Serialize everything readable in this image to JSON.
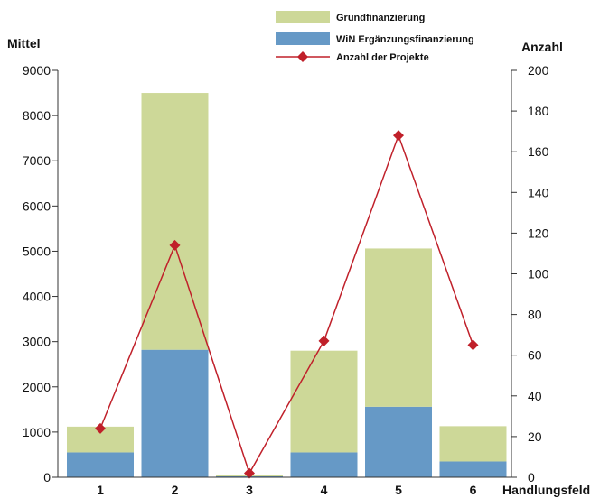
{
  "chart_data": {
    "type": "bar",
    "stacked": true,
    "categories": [
      "1",
      "2",
      "3",
      "4",
      "5",
      "6"
    ],
    "xlabel": "Handlungsfeld",
    "ylabel_left": "Mittel",
    "ylabel_right": "Anzahl",
    "ylim_left": [
      0,
      9000
    ],
    "yticks_left": [
      0,
      1000,
      2000,
      3000,
      4000,
      5000,
      6000,
      7000,
      8000,
      9000
    ],
    "ylim_right": [
      0,
      200
    ],
    "yticks_right": [
      0,
      20,
      40,
      60,
      80,
      100,
      120,
      140,
      160,
      180,
      200
    ],
    "grid": false,
    "legend_position": "top",
    "series": [
      {
        "name": "WiN Ergänzungsfinanzierung",
        "kind": "bar",
        "axis": "left",
        "values": [
          550,
          2820,
          20,
          550,
          1560,
          350
        ],
        "color": "#6699c6"
      },
      {
        "name": "Grundfinanzierung",
        "kind": "bar",
        "axis": "left",
        "values": [
          570,
          5680,
          30,
          2250,
          3500,
          780
        ],
        "color": "#cdd898"
      },
      {
        "name": "Anzahl der Projekte",
        "kind": "line",
        "axis": "right",
        "values": [
          24,
          114,
          2,
          67,
          168,
          65
        ],
        "color": "#c0202a"
      }
    ],
    "legend_order": [
      1,
      0,
      2
    ]
  }
}
